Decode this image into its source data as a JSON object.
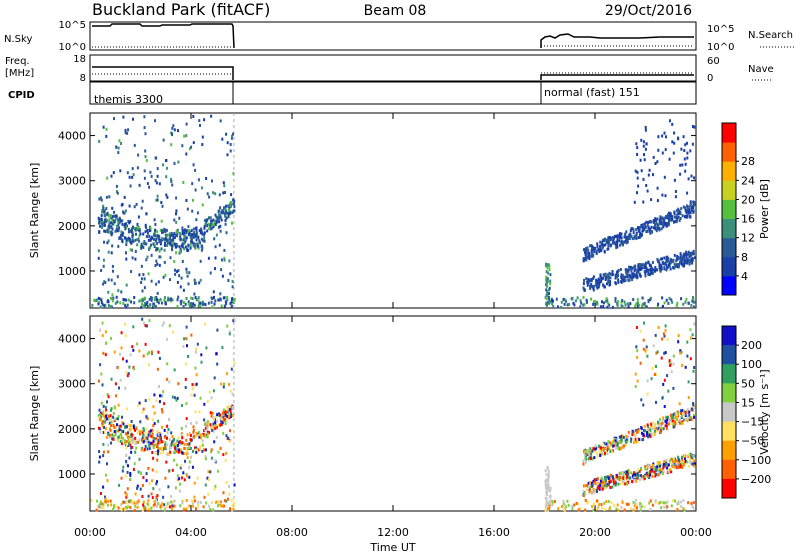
{
  "header": {
    "station": "Buckland Park (fitACF)",
    "beam": "Beam 08",
    "date": "29/Oct/2016"
  },
  "strip_labels": {
    "nsky": "N.Sky",
    "nsky_ticks": [
      "10^5",
      "10^0"
    ],
    "nsearch": "N.Search",
    "nsearch_ticks": [
      "10^5",
      "10^0"
    ],
    "freq": "Freq.",
    "freq_unit": "[MHz]",
    "freq_ticks": [
      "18",
      "8"
    ],
    "nave": "Nave",
    "nave_ticks": [
      "60",
      "0"
    ],
    "cpid": "CPID",
    "cpid_modes": [
      {
        "label": "themis 3300",
        "start_hour": 0.0,
        "end_hour": 5.7
      },
      {
        "label": "normal (fast) 151",
        "start_hour": 18.0,
        "end_hour": 24.0
      }
    ]
  },
  "chart_data": [
    {
      "type": "heatmap",
      "quantity": "Power",
      "ylabel": "Slant Range [km]",
      "ylim": [
        180,
        4500
      ],
      "yticks": [
        "1000",
        "2000",
        "3000",
        "4000"
      ],
      "xlim": [
        0,
        24
      ],
      "xticks": [
        "00:00",
        "04:00",
        "08:00",
        "12:00",
        "16:00",
        "20:00",
        "00:00"
      ],
      "colorbar": {
        "label": "Power [dB]",
        "min": 0,
        "max": 32,
        "ticks": [
          "4",
          "8",
          "12",
          "16",
          "20",
          "24",
          "28"
        ],
        "colors": [
          "#0000ff",
          "#1a3fa8",
          "#2a5a96",
          "#3c8f7a",
          "#55c040",
          "#c8d020",
          "#ffb000",
          "#ff6000",
          "#ff0000"
        ]
      },
      "data_intervals_hours": [
        [
          0.0,
          5.7
        ],
        [
          18.0,
          24.0
        ]
      ]
    },
    {
      "type": "heatmap",
      "quantity": "Velocity",
      "ylabel": "Slant Range [km]",
      "ylim": [
        180,
        4500
      ],
      "yticks": [
        "1000",
        "2000",
        "3000",
        "4000"
      ],
      "xlim": [
        0,
        24
      ],
      "xticks": [
        "00:00",
        "04:00",
        "08:00",
        "12:00",
        "16:00",
        "20:00",
        "00:00"
      ],
      "xlabel": "Time UT",
      "colorbar": {
        "label": "Velocity [m s⁻¹]",
        "ticks": [
          "200",
          "100",
          "50",
          "15",
          "−15",
          "−50",
          "−100",
          "−200"
        ],
        "colors": [
          "#1010c8",
          "#2050a0",
          "#30a060",
          "#80d040",
          "#c8c8c8",
          "#ffe060",
          "#ffa000",
          "#ff6000",
          "#ff0000"
        ]
      },
      "data_intervals_hours": [
        [
          0.0,
          5.7
        ],
        [
          18.0,
          24.0
        ]
      ]
    }
  ]
}
